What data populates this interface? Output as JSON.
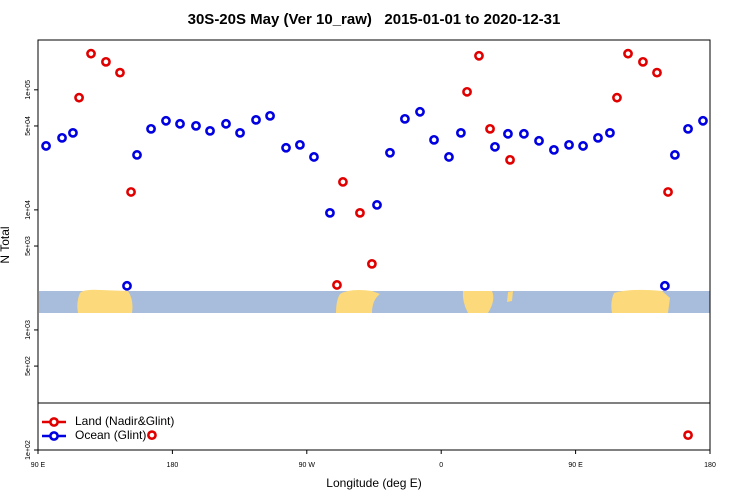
{
  "chart_data": {
    "type": "scatter",
    "title": "30S-20S May (Ver 10_raw)   2015-01-01 to 2020-12-31",
    "x_label": "Longitude (deg E)",
    "y_label": "N Total",
    "log_y": true,
    "legend": "lower left",
    "xlim": [
      90,
      540
    ],
    "xticks": [
      {
        "value": 90,
        "label": "90 E"
      },
      180,
      {
        "value": 270,
        "label": "90 W"
      },
      {
        "value": 360,
        "label": "0"
      },
      {
        "value": 450,
        "label": "90 E"
      },
      {
        "value": 540,
        "label": "180"
      }
    ],
    "ylim": [
      100,
      260000
    ],
    "yticks": [
      {
        "value": 100,
        "label": "1e+02"
      },
      {
        "value": 500,
        "label": "5e+02"
      },
      {
        "value": 1000,
        "label": "1e+03"
      },
      {
        "value": 5000,
        "label": "5e+03"
      },
      {
        "value": 10000,
        "label": "1e+04"
      },
      {
        "value": 50000,
        "label": "5e+04"
      },
      {
        "value": 100000,
        "label": "1e+05"
      }
    ],
    "series": [
      {
        "name": "Land (Nadir&Glint)",
        "color": "#e00000",
        "x": [
          117.5,
          125.5,
          135.5,
          144.9,
          152.3,
          166.3,
          290.2,
          294.2,
          305.6,
          313.6,
          377.3,
          385.3,
          392.7,
          406.1,
          477.7,
          485.1,
          495.1,
          504.5,
          511.9,
          525.3
        ],
        "values": [
          86000,
          200000,
          171000,
          139000,
          14100,
          133,
          2370,
          17100,
          9440,
          3550,
          96200,
          192000,
          47300,
          26100,
          86000,
          200000,
          171000,
          139000,
          14100,
          133
        ]
      },
      {
        "name": "Ocean (Glint)",
        "color": "#0000e0",
        "x": [
          95.4,
          106.1,
          113.4,
          149.6,
          156.3,
          165.7,
          175.7,
          185.1,
          195.8,
          205.2,
          215.9,
          225.3,
          236.0,
          245.4,
          256.1,
          265.4,
          274.8,
          285.5,
          317.0,
          325.7,
          335.7,
          345.8,
          355.2,
          365.2,
          373.2,
          396.0,
          404.7,
          415.4,
          425.5,
          435.5,
          445.6,
          455.0,
          465.0,
          473.0,
          509.8,
          516.5,
          525.3,
          535.3
        ],
        "values": [
          34100,
          39800,
          43800,
          2330,
          28700,
          47300,
          55200,
          52100,
          50100,
          45500,
          52100,
          43800,
          56200,
          60700,
          32900,
          34800,
          27600,
          9440,
          11000,
          29900,
          57300,
          65600,
          38300,
          27600,
          43800,
          33500,
          43000,
          43000,
          37600,
          31600,
          34800,
          34100,
          39800,
          43800,
          2330,
          28700,
          47300,
          55200
        ]
      }
    ]
  }
}
